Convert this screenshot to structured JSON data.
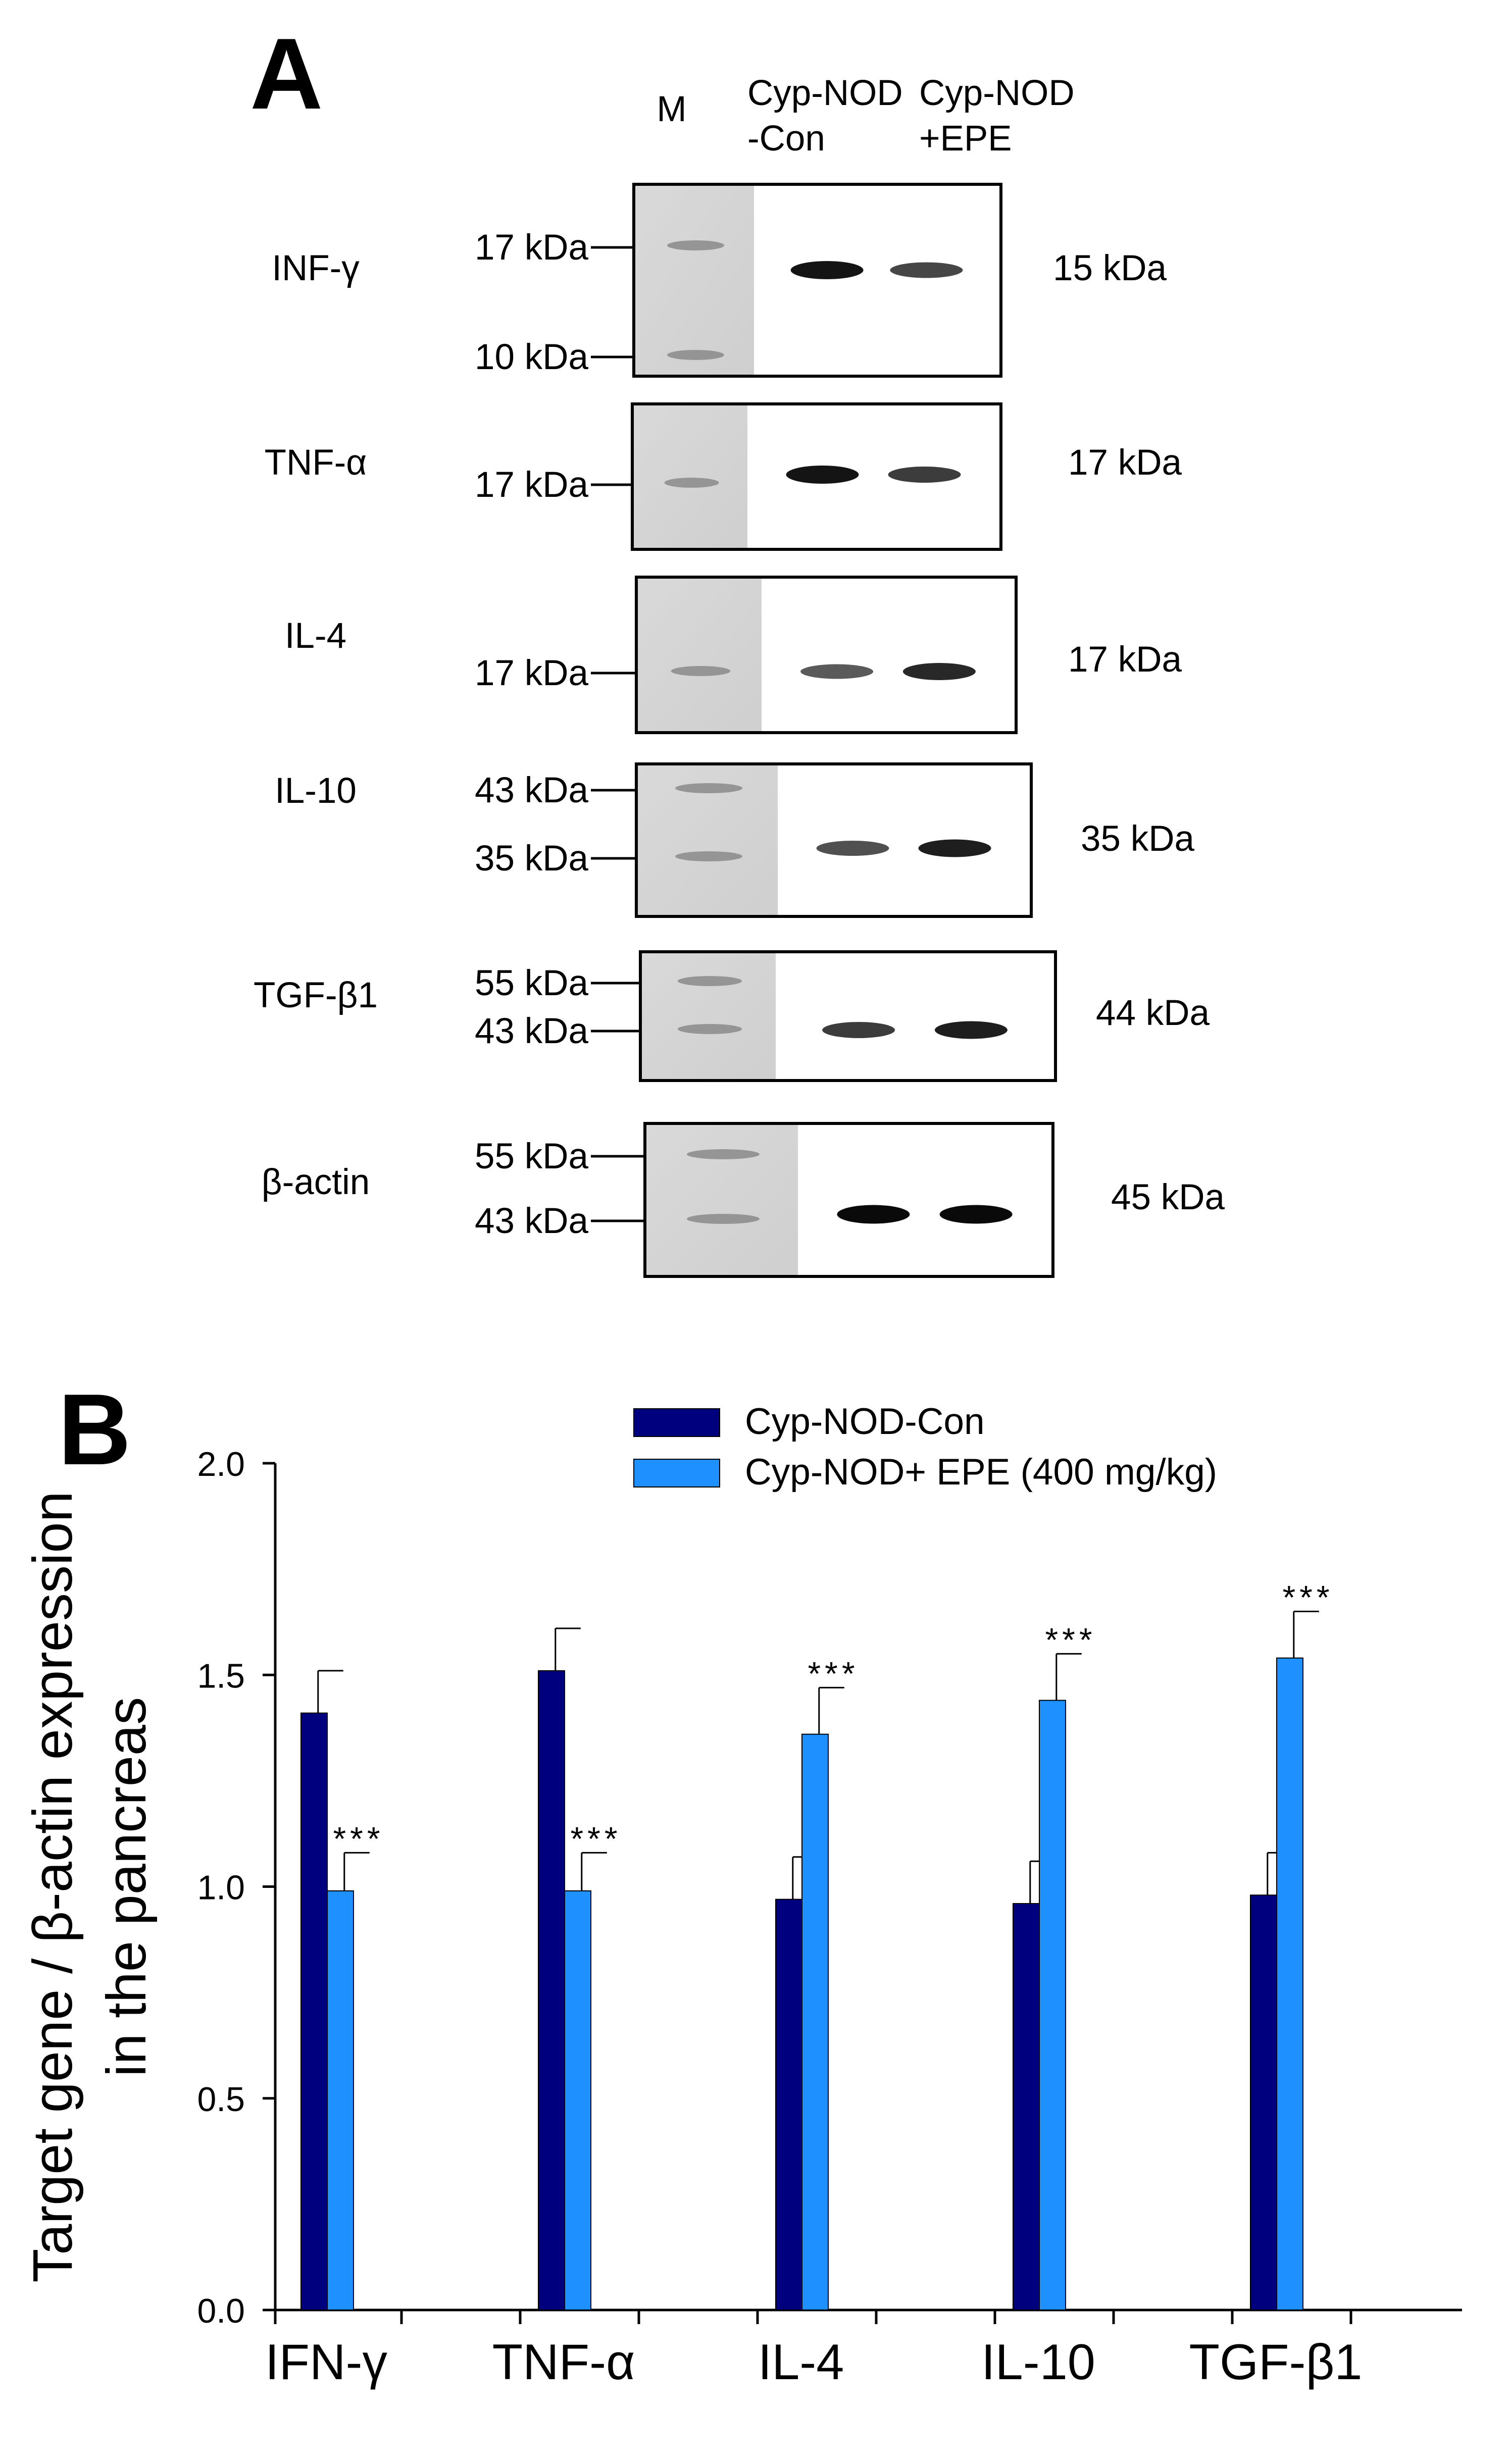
{
  "panel_a": {
    "letter": "A",
    "columns": {
      "marker": "M",
      "lane1": [
        "Cyp-NOD",
        "-Con"
      ],
      "lane2": [
        "Cyp-NOD",
        "+EPE"
      ]
    },
    "blots": [
      {
        "name": "INF-γ",
        "markers": [
          "17 kDa",
          "10 kDa"
        ],
        "size": "15 kDa",
        "band1": 0.9,
        "band2": 0.65
      },
      {
        "name": "TNF-α",
        "markers": [
          "17 kDa"
        ],
        "size": "17 kDa",
        "band1": 0.9,
        "band2": 0.7
      },
      {
        "name": "IL-4",
        "markers": [
          "17 kDa"
        ],
        "size": "17 kDa",
        "band1": 0.55,
        "band2": 0.8
      },
      {
        "name": "IL-10",
        "markers": [
          "43 kDa",
          "35 kDa"
        ],
        "size": "35 kDa",
        "band1": 0.6,
        "band2": 0.85
      },
      {
        "name": "TGF-β1",
        "markers": [
          "55 kDa",
          "43 kDa"
        ],
        "size": "44 kDa",
        "band1": 0.7,
        "band2": 0.85
      },
      {
        "name": "β-actin",
        "markers": [
          "55 kDa",
          "43 kDa"
        ],
        "size": "45 kDa",
        "band1": 0.95,
        "band2": 0.95
      }
    ]
  },
  "panel_b": {
    "letter": "B"
  },
  "chart_data": {
    "type": "bar",
    "title": "",
    "xlabel": "",
    "ylabel": [
      "Target gene / β-actin expression",
      "in the pancreas"
    ],
    "ylim": [
      0,
      2.0
    ],
    "yticks": [
      "0.0",
      "0.5",
      "1.0",
      "1.5",
      "2.0"
    ],
    "categories": [
      "IFN-γ",
      "TNF-α",
      "IL-4",
      "IL-10",
      "TGF-β1"
    ],
    "series": [
      {
        "name": "Cyp-NOD-Con",
        "color": "#00007f",
        "values": [
          1.41,
          1.51,
          0.97,
          0.96,
          0.98
        ],
        "errors": [
          0.1,
          0.1,
          0.1,
          0.1,
          0.1
        ]
      },
      {
        "name": "Cyp-NOD+ EPE (400 mg/kg)",
        "color": "#1e90ff",
        "values": [
          0.99,
          0.99,
          1.36,
          1.44,
          1.54
        ],
        "errors": [
          0.09,
          0.09,
          0.11,
          0.11,
          0.11
        ]
      }
    ],
    "significance": [
      "***",
      "***",
      "***",
      "***",
      "***"
    ],
    "legend": "top-right"
  }
}
